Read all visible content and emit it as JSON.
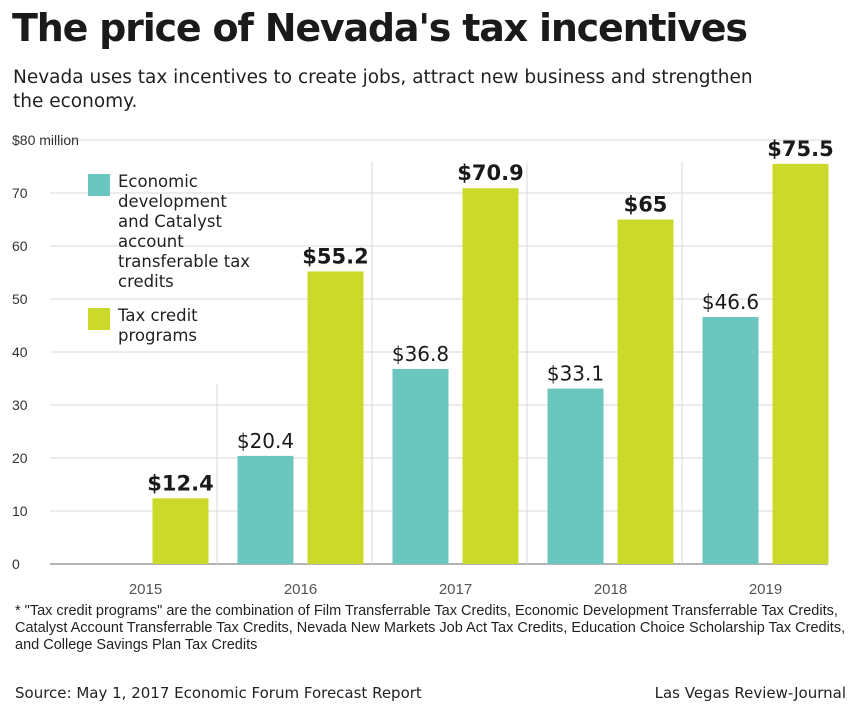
{
  "title": "The price of Nevada's tax incentives",
  "subtitle": "Nevada uses tax incentives to create jobs, attract new business and strengthen the economy.",
  "footnote": "* \"Tax credit programs\" are the combination of Film Transferrable Tax Credits, Economic Development Transferrable Tax Credits, Catalyst Account Transferrable Tax Credits, Nevada New Markets Job Act Tax Credits, Education Choice Scholarship Tax Credits, and College Savings Plan Tax Credits",
  "source": "Source: May 1, 2017 Economic Forum Forecast Report",
  "credit": "Las Vegas Review-Journal",
  "colors": {
    "teal": "#6cc6c0",
    "lime": "#cbd92a"
  },
  "chart_data": {
    "type": "bar",
    "categories": [
      "2015",
      "2016",
      "2017",
      "2018",
      "2019"
    ],
    "series": [
      {
        "name": "Economic development and Catalyst account transferable tax credits",
        "values": [
          null,
          20.4,
          36.8,
          33.1,
          46.6
        ],
        "labels": [
          "",
          "$20.4",
          "$36.8",
          "$33.1",
          "$46.6"
        ]
      },
      {
        "name": "Tax credit programs",
        "values": [
          12.4,
          55.2,
          70.9,
          65,
          75.5
        ],
        "labels": [
          "$12.4",
          "$55.2",
          "$70.9",
          "$65",
          "$75.5"
        ]
      }
    ],
    "ylim": [
      0,
      80
    ],
    "yticks": [
      0,
      10,
      20,
      30,
      40,
      50,
      60,
      70,
      80
    ],
    "ytick_labels": [
      "0",
      "10",
      "20",
      "30",
      "40",
      "50",
      "60",
      "70",
      "$80 million"
    ],
    "grid": true,
    "legend_position": "top-left"
  }
}
